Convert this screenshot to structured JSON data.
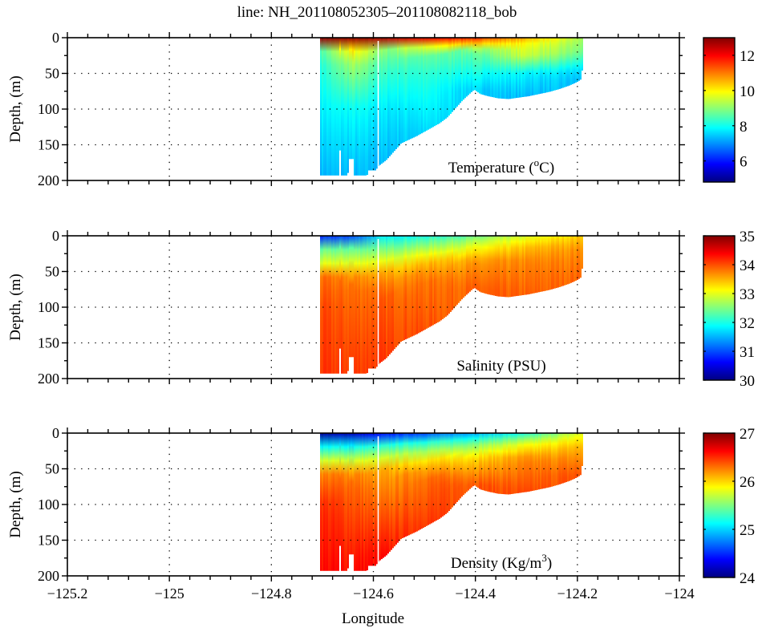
{
  "figure": {
    "title": "line: NH_201108052305–201108082118_bob",
    "xlabel": "Longitude"
  },
  "chart_data": [
    {
      "type": "heatmap",
      "id": "temperature",
      "label": "Temperature (°C)",
      "label_main": "Temperature (",
      "label_sup": "o",
      "label_end": "C)",
      "ylabel": "Depth, (m)",
      "xlim": [
        -125.2,
        -124.0
      ],
      "ylim": [
        0,
        200
      ],
      "y_reversed": true,
      "xticks": [
        -125.2,
        -125.0,
        -124.8,
        -124.6,
        -124.4,
        -124.2,
        -124.0
      ],
      "xtick_labels": [
        "−125.2",
        "−125",
        "−124.8",
        "−124.6",
        "−124.4",
        "−124.2",
        "−124"
      ],
      "yticks": [
        0,
        50,
        100,
        150,
        200
      ],
      "ytick_labels": [
        "0",
        "50",
        "100",
        "150",
        "200"
      ],
      "grid": true,
      "colorbar": {
        "range": [
          4.8,
          13
        ],
        "ticks": [
          6,
          8,
          10,
          12
        ],
        "tick_labels": [
          "6",
          "8",
          "10",
          "12"
        ],
        "colormap": "jet"
      },
      "profiles": [
        {
          "lon": -124.7,
          "stops": [
            [
              0,
              12.8
            ],
            [
              6,
              12.0
            ],
            [
              12,
              10.5
            ],
            [
              18,
              8.6
            ],
            [
              40,
              8.2
            ],
            [
              100,
              7.8
            ],
            [
              193,
              7.3
            ]
          ]
        },
        {
          "lon": -124.64,
          "stops": [
            [
              0,
              12.8
            ],
            [
              6,
              12.2
            ],
            [
              14,
              10.4
            ],
            [
              25,
              9.4
            ],
            [
              45,
              9.0
            ],
            [
              100,
              7.9
            ],
            [
              193,
              7.3
            ]
          ]
        },
        {
          "lon": -124.58,
          "stops": [
            [
              0,
              12.6
            ],
            [
              8,
              11.8
            ],
            [
              16,
              9.0
            ],
            [
              40,
              8.4
            ],
            [
              100,
              7.7
            ],
            [
              175,
              7.3
            ]
          ]
        },
        {
          "lon": -124.5,
          "stops": [
            [
              0,
              12.2
            ],
            [
              8,
              11.0
            ],
            [
              16,
              8.8
            ],
            [
              50,
              8.2
            ],
            [
              135,
              7.5
            ]
          ]
        },
        {
          "lon": -124.4,
          "stops": [
            [
              0,
              11.6
            ],
            [
              8,
              10.4
            ],
            [
              18,
              8.7
            ],
            [
              50,
              8.0
            ],
            [
              73,
              7.5
            ]
          ]
        },
        {
          "lon": -124.3,
          "stops": [
            [
              0,
              10.6
            ],
            [
              10,
              9.8
            ],
            [
              25,
              9.5
            ],
            [
              50,
              7.8
            ],
            [
              84,
              7.3
            ]
          ]
        },
        {
          "lon": -124.19,
          "stops": [
            [
              0,
              9.2
            ],
            [
              20,
              8.8
            ],
            [
              45,
              7.6
            ],
            [
              60,
              7.3
            ]
          ]
        }
      ]
    },
    {
      "type": "heatmap",
      "id": "salinity",
      "label": "Salinity (PSU)",
      "ylabel": "Depth, (m)",
      "xlim": [
        -125.2,
        -124.0
      ],
      "ylim": [
        0,
        200
      ],
      "y_reversed": true,
      "xticks": [
        -125.2,
        -125.0,
        -124.8,
        -124.6,
        -124.4,
        -124.2,
        -124.0
      ],
      "xtick_labels": [
        "−125.2",
        "−125",
        "−124.8",
        "−124.6",
        "−124.4",
        "−124.2",
        "−124"
      ],
      "yticks": [
        0,
        50,
        100,
        150,
        200
      ],
      "ytick_labels": [
        "0",
        "50",
        "100",
        "150",
        "200"
      ],
      "grid": true,
      "colorbar": {
        "range": [
          30,
          35
        ],
        "ticks": [
          30,
          31,
          32,
          33,
          34,
          35
        ],
        "tick_labels": [
          "30",
          "31",
          "32",
          "33",
          "34",
          "35"
        ],
        "colormap": "jet"
      },
      "profiles": [
        {
          "lon": -124.7,
          "stops": [
            [
              0,
              30.8
            ],
            [
              6,
              31.8
            ],
            [
              20,
              32.4
            ],
            [
              40,
              33.0
            ],
            [
              55,
              33.8
            ],
            [
              100,
              34.0
            ],
            [
              193,
              34.1
            ]
          ]
        },
        {
          "lon": -124.64,
          "stops": [
            [
              0,
              31.0
            ],
            [
              8,
              32.0
            ],
            [
              25,
              32.6
            ],
            [
              45,
              33.2
            ],
            [
              60,
              33.8
            ],
            [
              193,
              34.1
            ]
          ]
        },
        {
          "lon": -124.58,
          "stops": [
            [
              0,
              31.8
            ],
            [
              8,
              32.1
            ],
            [
              30,
              32.8
            ],
            [
              50,
              33.5
            ],
            [
              80,
              33.9
            ],
            [
              175,
              34.1
            ]
          ]
        },
        {
          "lon": -124.5,
          "stops": [
            [
              0,
              32.0
            ],
            [
              15,
              32.6
            ],
            [
              35,
              33.4
            ],
            [
              60,
              33.8
            ],
            [
              135,
              34.0
            ]
          ]
        },
        {
          "lon": -124.4,
          "stops": [
            [
              0,
              32.4
            ],
            [
              15,
              33.0
            ],
            [
              35,
              33.6
            ],
            [
              73,
              33.9
            ]
          ]
        },
        {
          "lon": -124.3,
          "stops": [
            [
              0,
              32.9
            ],
            [
              15,
              33.4
            ],
            [
              35,
              33.7
            ],
            [
              84,
              33.9
            ]
          ]
        },
        {
          "lon": -124.19,
          "stops": [
            [
              0,
              33.4
            ],
            [
              20,
              33.7
            ],
            [
              60,
              33.9
            ]
          ]
        }
      ]
    },
    {
      "type": "heatmap",
      "id": "density",
      "label": "Density (Kg/m3)",
      "label_main": "Density (Kg/m",
      "label_sup": "3",
      "label_end": ")",
      "ylabel": "Depth, (m)",
      "xlabel": "Longitude",
      "xlim": [
        -125.2,
        -124.0
      ],
      "ylim": [
        0,
        200
      ],
      "y_reversed": true,
      "xticks": [
        -125.2,
        -125.0,
        -124.8,
        -124.6,
        -124.4,
        -124.2,
        -124.0
      ],
      "xtick_labels": [
        "−125.2",
        "−125",
        "−124.8",
        "−124.6",
        "−124.4",
        "−124.2",
        "−124"
      ],
      "yticks": [
        0,
        50,
        100,
        150,
        200
      ],
      "ytick_labels": [
        "0",
        "50",
        "100",
        "150",
        "200"
      ],
      "grid": true,
      "colorbar": {
        "range": [
          24,
          27
        ],
        "ticks": [
          24,
          25,
          26,
          27
        ],
        "tick_labels": [
          "24",
          "25",
          "26",
          "27"
        ],
        "colormap": "jet"
      },
      "profiles": [
        {
          "lon": -124.7,
          "stops": [
            [
              0,
              24.1
            ],
            [
              6,
              24.4
            ],
            [
              15,
              25.0
            ],
            [
              35,
              25.6
            ],
            [
              50,
              26.2
            ],
            [
              100,
              26.5
            ],
            [
              193,
              26.6
            ]
          ]
        },
        {
          "lon": -124.64,
          "stops": [
            [
              0,
              24.2
            ],
            [
              8,
              24.6
            ],
            [
              20,
              25.2
            ],
            [
              40,
              25.8
            ],
            [
              60,
              26.3
            ],
            [
              193,
              26.6
            ]
          ]
        },
        {
          "lon": -124.58,
          "stops": [
            [
              0,
              24.4
            ],
            [
              10,
              25.0
            ],
            [
              30,
              25.6
            ],
            [
              50,
              26.1
            ],
            [
              175,
              26.6
            ]
          ]
        },
        {
          "lon": -124.5,
          "stops": [
            [
              0,
              24.6
            ],
            [
              12,
              25.2
            ],
            [
              35,
              25.9
            ],
            [
              60,
              26.3
            ],
            [
              135,
              26.5
            ]
          ]
        },
        {
          "lon": -124.4,
          "stops": [
            [
              0,
              24.9
            ],
            [
              15,
              25.5
            ],
            [
              35,
              26.0
            ],
            [
              73,
              26.4
            ]
          ]
        },
        {
          "lon": -124.3,
          "stops": [
            [
              0,
              25.2
            ],
            [
              15,
              25.8
            ],
            [
              35,
              26.2
            ],
            [
              84,
              26.4
            ]
          ]
        },
        {
          "lon": -124.19,
          "stops": [
            [
              0,
              25.8
            ],
            [
              20,
              26.1
            ],
            [
              60,
              26.4
            ]
          ]
        }
      ]
    }
  ],
  "section_extent": {
    "lon_start": -124.705,
    "lon_end": -124.19,
    "bottom_profile": [
      [
        -124.705,
        193
      ],
      [
        -124.668,
        193
      ],
      [
        -124.667,
        158
      ],
      [
        -124.664,
        158
      ],
      [
        -124.663,
        193
      ],
      [
        -124.655,
        193
      ],
      [
        -124.65,
        193
      ],
      [
        -124.647,
        170
      ],
      [
        -124.64,
        170
      ],
      [
        -124.638,
        193
      ],
      [
        -124.62,
        193
      ],
      [
        -124.612,
        193
      ],
      [
        -124.61,
        186
      ],
      [
        -124.595,
        186
      ],
      [
        -124.59,
        180
      ],
      [
        -124.575,
        172
      ],
      [
        -124.56,
        160
      ],
      [
        -124.545,
        148
      ],
      [
        -124.53,
        143
      ],
      [
        -124.515,
        138
      ],
      [
        -124.5,
        132
      ],
      [
        -124.485,
        126
      ],
      [
        -124.47,
        120
      ],
      [
        -124.455,
        112
      ],
      [
        -124.44,
        100
      ],
      [
        -124.425,
        88
      ],
      [
        -124.41,
        78
      ],
      [
        -124.402,
        73
      ],
      [
        -124.39,
        79
      ],
      [
        -124.375,
        82
      ],
      [
        -124.355,
        85
      ],
      [
        -124.335,
        86
      ],
      [
        -124.315,
        84
      ],
      [
        -124.295,
        82
      ],
      [
        -124.275,
        79
      ],
      [
        -124.255,
        76
      ],
      [
        -124.235,
        72
      ],
      [
        -124.215,
        67
      ],
      [
        -124.2,
        62
      ],
      [
        -124.192,
        58
      ],
      [
        -124.19,
        44
      ],
      [
        -124.19,
        0
      ]
    ],
    "gap_lons": [
      -124.593
    ]
  }
}
